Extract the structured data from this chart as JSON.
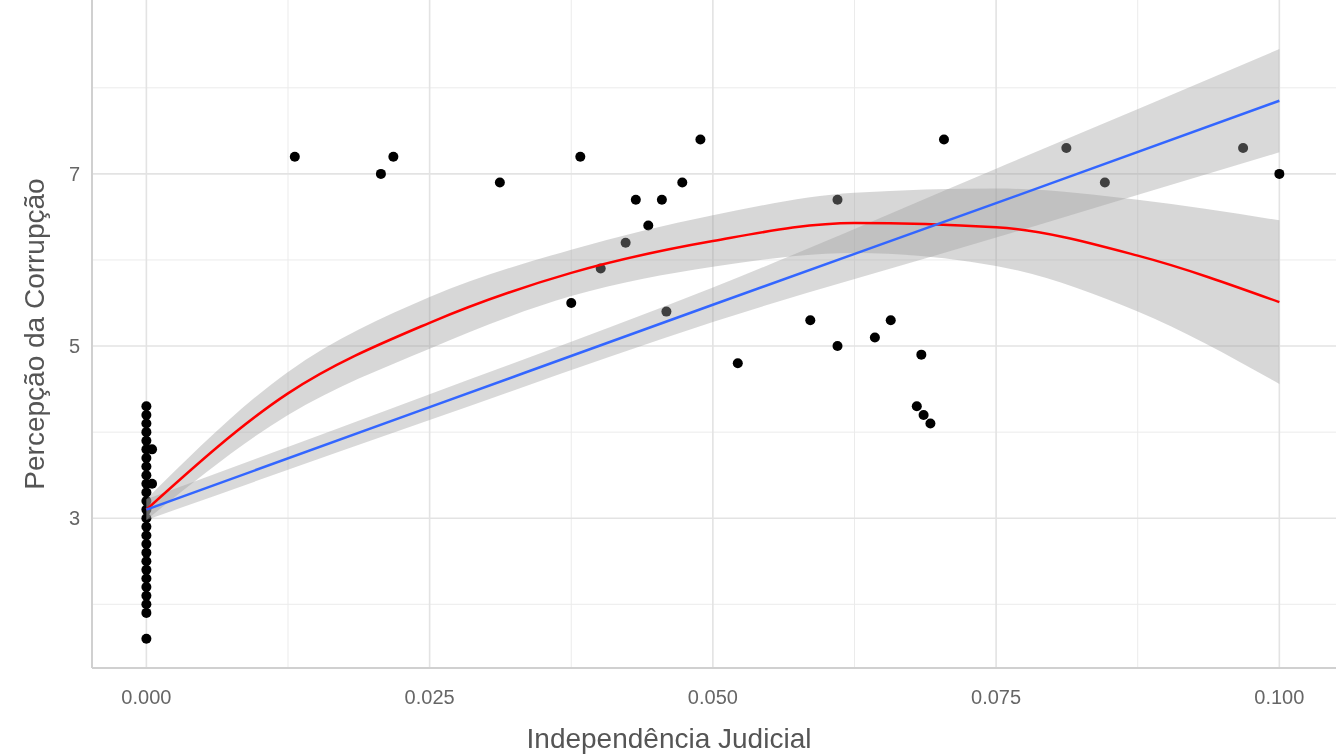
{
  "chart_data": {
    "type": "scatter",
    "xlabel": "Independência Judicial",
    "ylabel": "Percepção da Corrupção",
    "xlim": [
      -0.0048,
      0.105
    ],
    "ylim": [
      1.26,
      9.02
    ],
    "xticks": [
      {
        "value": 0,
        "label": "0.000"
      },
      {
        "value": 0.025,
        "label": "0.025"
      },
      {
        "value": 0.05,
        "label": "0.050"
      },
      {
        "value": 0.075,
        "label": "0.075"
      },
      {
        "value": 0.1,
        "label": "0.100"
      }
    ],
    "yticks": [
      3,
      5,
      7
    ],
    "grid": true,
    "series": [
      {
        "color": "#000000",
        "marker": "circle",
        "x": [
          0,
          0,
          0,
          0,
          0,
          0,
          0,
          0,
          0,
          0,
          0,
          0,
          0,
          0,
          0,
          0,
          0,
          0,
          0,
          0,
          0,
          0,
          0,
          0,
          0,
          0,
          0.0005,
          0.0005,
          0.0131,
          0.0207,
          0.0218,
          0.0312,
          0.0375,
          0.0383,
          0.0401,
          0.0423,
          0.0432,
          0.0443,
          0.0455,
          0.0459,
          0.0473,
          0.0489,
          0.0522,
          0.0586,
          0.061,
          0.061,
          0.0643,
          0.0657,
          0.0684,
          0.068,
          0.0686,
          0.0692,
          0.0704,
          0.0812,
          0.0846,
          0.0968,
          0.1
        ],
        "values": [
          4.3,
          4.2,
          4.1,
          4.0,
          3.9,
          3.8,
          3.7,
          3.6,
          3.5,
          3.4,
          3.3,
          3.2,
          3.1,
          3.0,
          2.9,
          2.8,
          2.7,
          2.6,
          2.5,
          2.4,
          2.3,
          2.2,
          2.1,
          2.0,
          1.9,
          1.6,
          3.8,
          3.4,
          7.2,
          7.0,
          7.2,
          6.9,
          5.5,
          7.2,
          5.9,
          6.2,
          6.7,
          6.4,
          6.7,
          5.4,
          6.9,
          7.4,
          4.8,
          5.3,
          6.7,
          5.0,
          5.1,
          5.3,
          4.9,
          4.3,
          4.2,
          4.1,
          7.4,
          7.3,
          6.9,
          7.3,
          7.0
        ]
      },
      {
        "type": "line",
        "color": "#ff0000",
        "marker": "none",
        "line_style": "solid",
        "x": [
          0,
          0.0125,
          0.025,
          0.0375,
          0.05,
          0.0625,
          0.075,
          0.0875,
          0.1
        ],
        "values": [
          3.1,
          4.45,
          5.27,
          5.85,
          6.22,
          6.43,
          6.38,
          6.05,
          5.51
        ],
        "lower": [
          2.98,
          4.2,
          4.97,
          5.58,
          5.92,
          6.08,
          5.93,
          5.4,
          4.56
        ],
        "upper": [
          3.22,
          4.7,
          5.57,
          6.12,
          6.52,
          6.78,
          6.83,
          6.7,
          6.46
        ]
      },
      {
        "type": "line",
        "color": "#3366ff",
        "marker": "none",
        "line_style": "solid",
        "x": [
          0,
          0.025,
          0.05,
          0.075,
          0.1
        ],
        "values": [
          3.1,
          4.29,
          5.48,
          6.66,
          7.85
        ],
        "lower": [
          2.98,
          4.14,
          5.28,
          6.26,
          7.25
        ],
        "upper": [
          3.22,
          4.44,
          5.68,
          7.06,
          8.45
        ]
      }
    ]
  }
}
